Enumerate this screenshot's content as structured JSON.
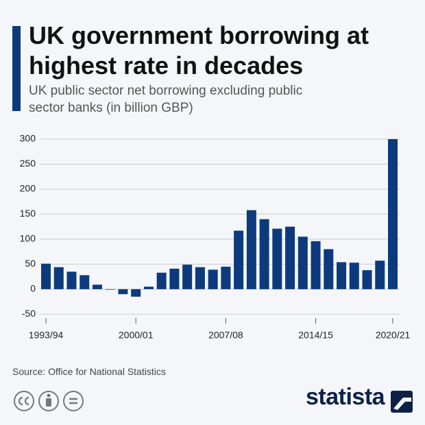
{
  "chart_data": {
    "type": "bar",
    "title": "UK government borrowing at highest rate in decades",
    "subtitle": "UK public sector net borrowing excluding public sector banks (in billion GBP)",
    "source": "Source: Office for National Statistics",
    "logo": "statista",
    "categories": [
      "1993/94",
      null,
      null,
      null,
      null,
      null,
      null,
      "2000/01",
      null,
      null,
      null,
      null,
      null,
      null,
      "2007/08",
      null,
      null,
      null,
      null,
      null,
      null,
      "2014/15",
      null,
      null,
      null,
      null,
      null,
      "2020/21"
    ],
    "values": [
      51,
      44,
      35,
      28,
      9,
      -1,
      -10,
      -15,
      5,
      33,
      41,
      49,
      44,
      39,
      45,
      117,
      158,
      140,
      121,
      125,
      105,
      96,
      80,
      54,
      53,
      38,
      57,
      300
    ],
    "color": "#0d3a7c",
    "ylim": [
      -55,
      305
    ],
    "yticks": [
      -50,
      0,
      50,
      100,
      150,
      200,
      250,
      300
    ],
    "grid": true
  }
}
